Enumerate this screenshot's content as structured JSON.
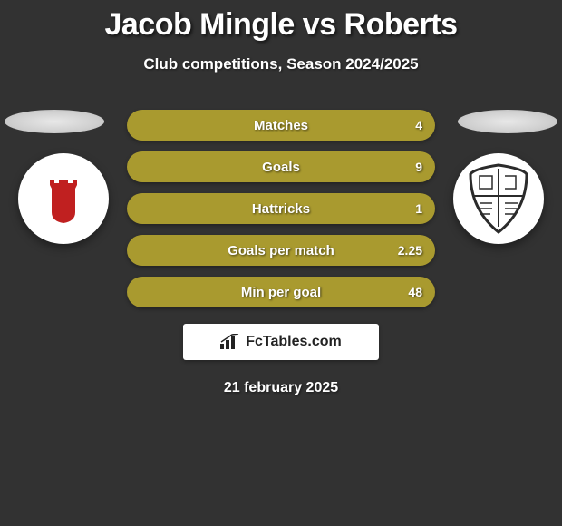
{
  "title": "Jacob Mingle vs Roberts",
  "subtitle": "Club competitions, Season 2024/2025",
  "stats": [
    {
      "label": "Matches",
      "right_value": "4",
      "color_a": "#a99a2f",
      "color_b": "#a99a2f",
      "split": 0
    },
    {
      "label": "Goals",
      "right_value": "9",
      "color_a": "#a99a2f",
      "color_b": "#a99a2f",
      "split": 0
    },
    {
      "label": "Hattricks",
      "right_value": "1",
      "color_a": "#a99a2f",
      "color_b": "#a99a2f",
      "split": 0
    },
    {
      "label": "Goals per match",
      "right_value": "2.25",
      "color_a": "#a99a2f",
      "color_b": "#a99a2f",
      "split": 0
    },
    {
      "label": "Min per goal",
      "right_value": "48",
      "color_a": "#a99a2f",
      "color_b": "#a99a2f",
      "split": 0
    }
  ],
  "fctables_label": "FcTables.com",
  "date_label": "21 february 2025",
  "colors": {
    "background": "#323232",
    "disc": "#d8d8d8",
    "badge_bg": "#ffffff",
    "left_badge_primary": "#c02020",
    "right_badge_primary": "#2b2b2b"
  }
}
